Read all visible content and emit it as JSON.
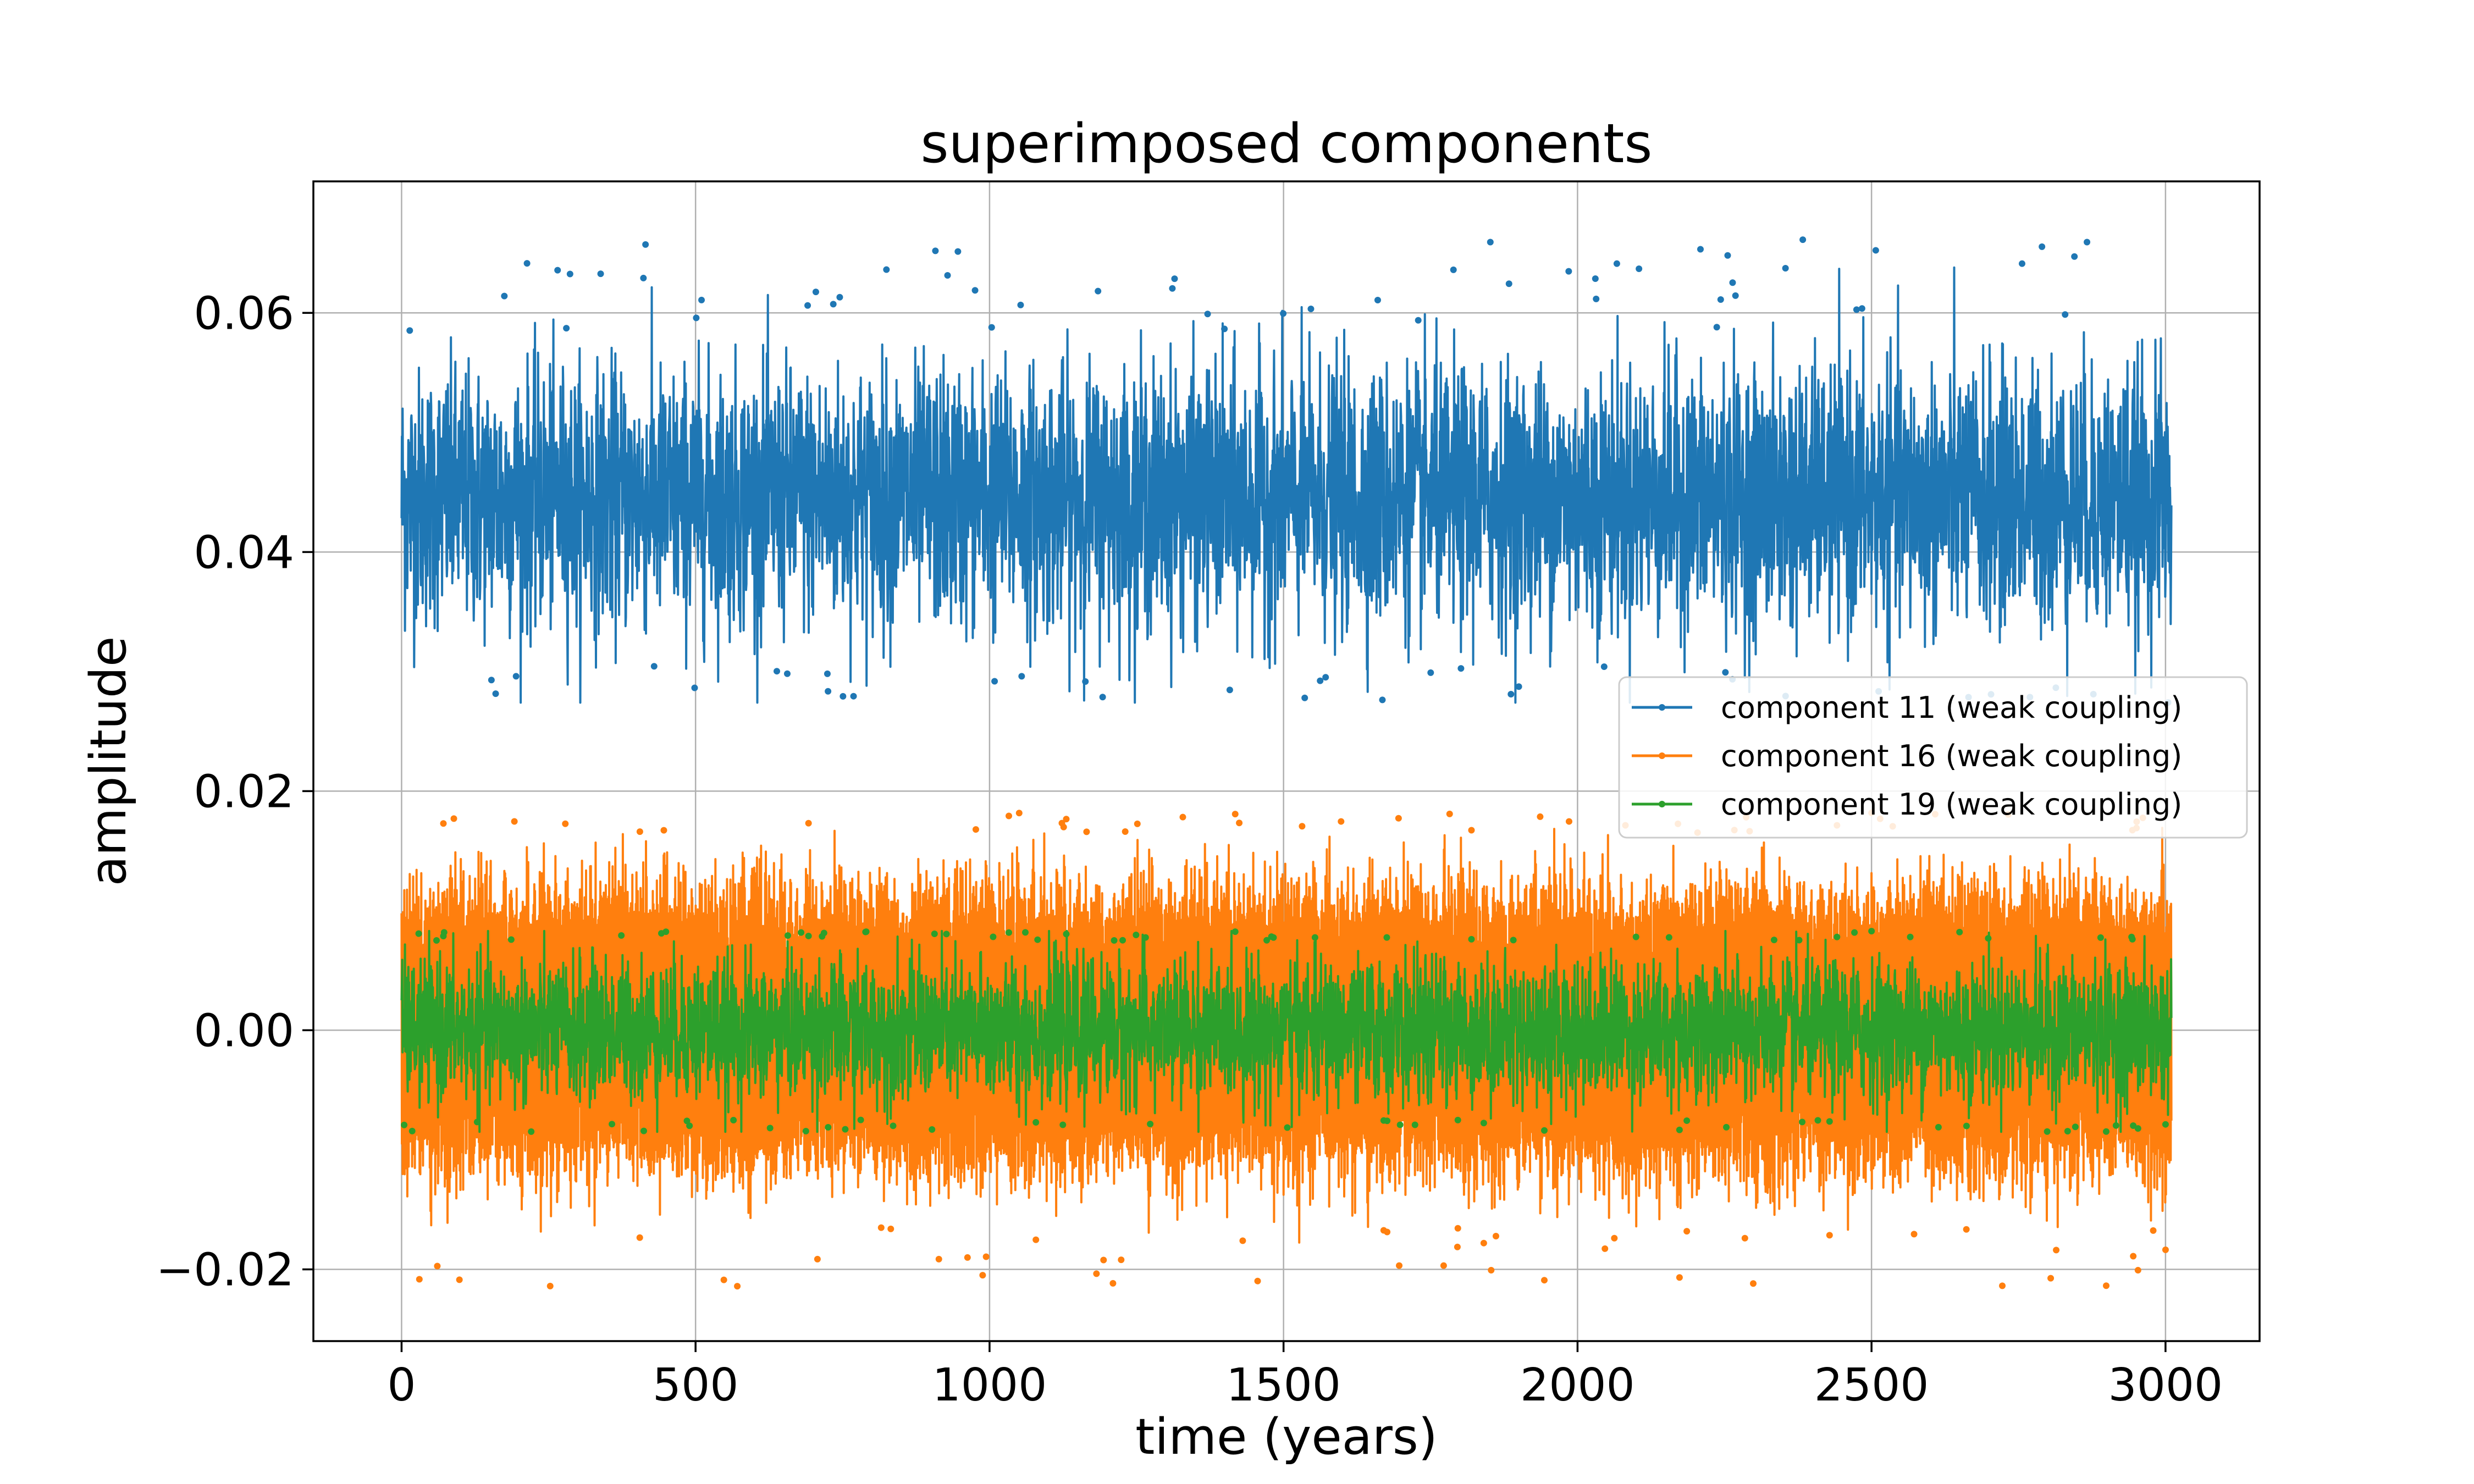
{
  "chart_data": {
    "type": "line",
    "title": "superimposed components",
    "xlabel": "time (years)",
    "ylabel": "amplitude",
    "xlim": [
      -150,
      3160
    ],
    "ylim": [
      -0.026,
      0.071
    ],
    "x_start": 0,
    "x_end": 3010,
    "x_ticks": [
      0,
      500,
      1000,
      1500,
      2000,
      2500,
      3000
    ],
    "x_tick_labels": [
      "0",
      "500",
      "1000",
      "1500",
      "2000",
      "2500",
      "3000"
    ],
    "y_ticks": [
      -0.02,
      0.0,
      0.02,
      0.04,
      0.06
    ],
    "y_tick_labels": [
      "−0.02",
      "0.00",
      "0.02",
      "0.04",
      "0.06"
    ],
    "grid": true,
    "legend_position": "center-right",
    "series": [
      {
        "name": "component 11 (weak coupling)",
        "color": "#1f77b4",
        "marker": "dot",
        "band_mean": 0.0445,
        "band_envelope": [
          0.0305,
          0.0585
        ],
        "min": 0.0274,
        "max": 0.0662
      },
      {
        "name": "component 16 (weak coupling)",
        "color": "#ff7f0e",
        "marker": "dot",
        "band_mean": 0.0,
        "band_envelope": [
          -0.0165,
          0.0165
        ],
        "min": -0.0215,
        "max": 0.0182
      },
      {
        "name": "component 19 (weak coupling)",
        "color": "#2ca02c",
        "marker": "dot",
        "band_mean": 0.0,
        "band_envelope": [
          -0.0075,
          0.0075
        ],
        "min": -0.0085,
        "max": 0.0083
      }
    ]
  }
}
